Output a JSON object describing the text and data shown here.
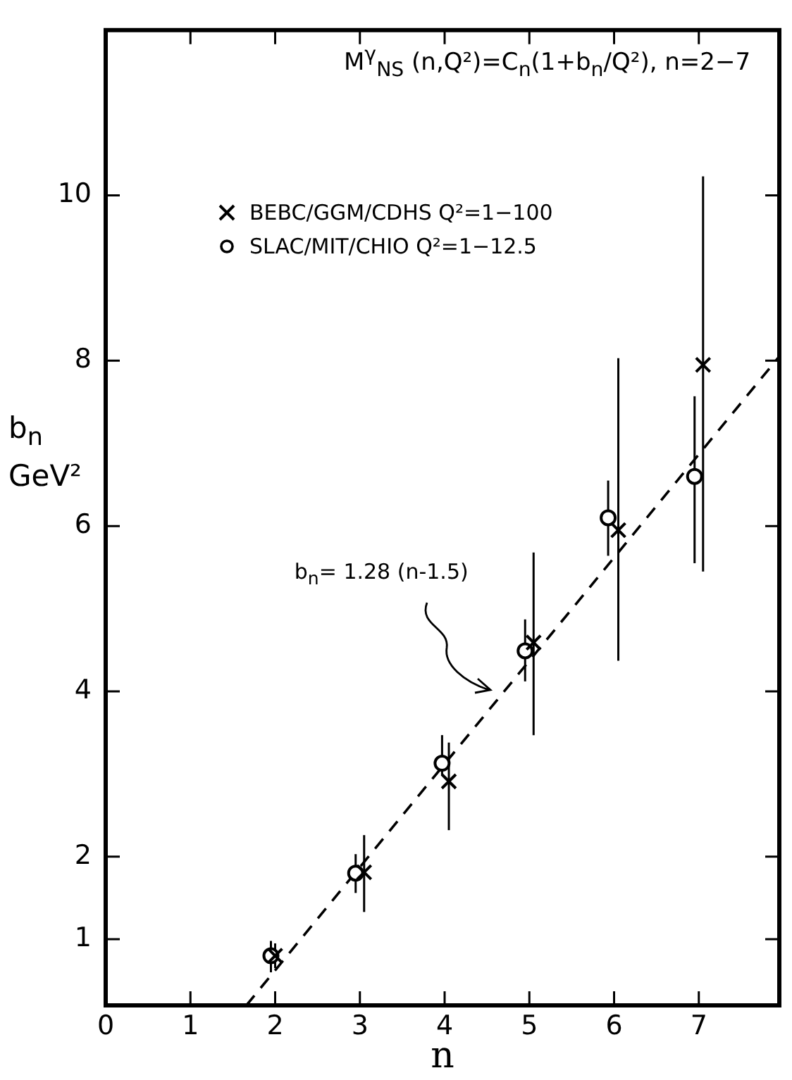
{
  "chart_data": {
    "type": "scatter",
    "title": "M$^{γ}$$_{NS}$ (n,Q²)=C$_{n}$(1+b$_{n}$/Q²), n=2−7",
    "xlabel": "n",
    "ylabel": "b$_{n}$ GeV²",
    "xlim": [
      0,
      7.95
    ],
    "xticks": [
      0,
      1,
      2,
      3,
      4,
      5,
      6,
      7
    ],
    "ylim": [
      0.2,
      12
    ],
    "yticks": [
      1,
      2,
      4,
      6,
      8,
      10
    ],
    "legend": "top left",
    "grid": false,
    "annotations": [
      "b$_{n}$= 1.28 (n-1.5)"
    ],
    "series": [
      {
        "name": "BEBC/GGM/CDHS  Q²=1−100",
        "color": "#000000",
        "marker": "cross",
        "x": [
          2,
          3.05,
          4.05,
          5.05,
          6.05,
          7.05
        ],
        "values": [
          0.8,
          1.81,
          2.91,
          4.59,
          5.95,
          7.95
        ],
        "errors": [
          [
            0.65,
            0.95
          ],
          [
            1.33,
            2.26
          ],
          [
            2.32,
            3.38
          ],
          [
            3.47,
            5.68
          ],
          [
            4.37,
            8.03
          ],
          [
            5.45,
            10.23
          ]
        ]
      },
      {
        "name": "SLAC/MIT/CHIO  Q²=1−12.5",
        "color": "#000000",
        "marker": "circle",
        "x": [
          1.95,
          2.95,
          3.97,
          4.95,
          5.93,
          6.95
        ],
        "values": [
          0.8,
          1.8,
          3.13,
          4.49,
          6.1,
          6.6
        ],
        "errors": [
          [
            0.6,
            0.98
          ],
          [
            1.56,
            2.03
          ],
          [
            2.98,
            3.47
          ],
          [
            4.12,
            4.87
          ],
          [
            5.64,
            6.55
          ],
          [
            5.55,
            7.57
          ]
        ]
      },
      {
        "type": "line",
        "color": "#000000",
        "marker": "none",
        "line_style": "dashed",
        "x": [
          1.66,
          7.94
        ],
        "values": [
          0.2,
          8.04
        ]
      }
    ]
  }
}
